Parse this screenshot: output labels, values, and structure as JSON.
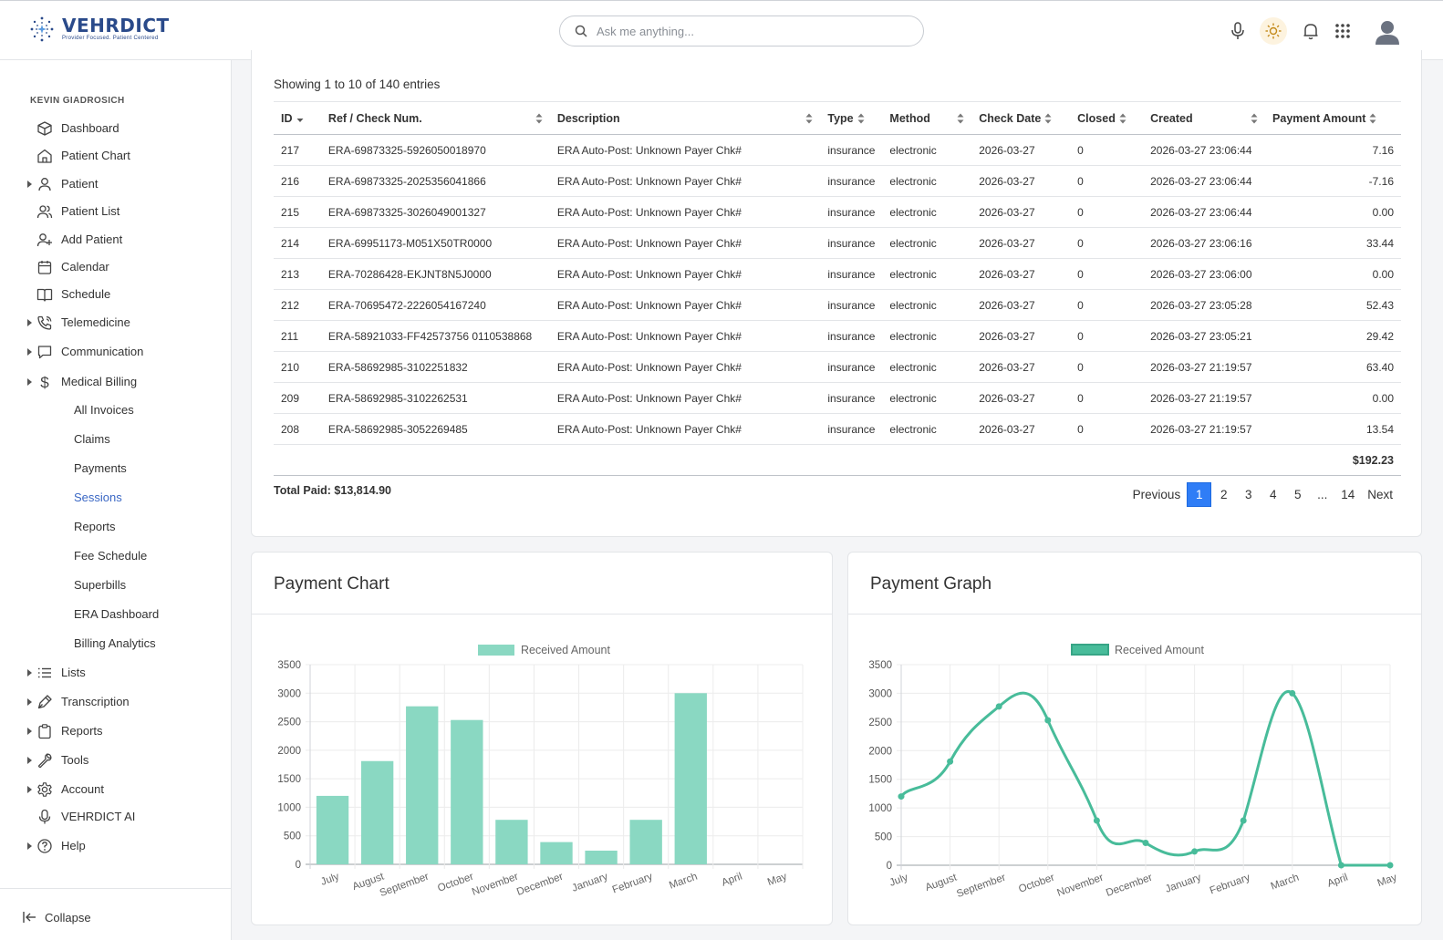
{
  "header": {
    "logo_name": "VEHRDICT",
    "logo_tagline": "Provider Focused. Patient Centered",
    "search_placeholder": "Ask me anything..."
  },
  "sidebar": {
    "user": "KEVIN GIADROSICH",
    "items": [
      {
        "label": "Dashboard",
        "icon": "cube-icon",
        "caret": false
      },
      {
        "label": "Patient Chart",
        "icon": "home-icon",
        "caret": false
      },
      {
        "label": "Patient",
        "icon": "user-icon",
        "caret": true
      },
      {
        "label": "Patient List",
        "icon": "users-icon",
        "caret": false
      },
      {
        "label": "Add Patient",
        "icon": "user-plus-icon",
        "caret": false
      },
      {
        "label": "Calendar",
        "icon": "calendar-icon",
        "caret": false
      },
      {
        "label": "Schedule",
        "icon": "book-icon",
        "caret": false
      },
      {
        "label": "Telemedicine",
        "icon": "phone-icon",
        "caret": true
      },
      {
        "label": "Communication",
        "icon": "chat-icon",
        "caret": true
      },
      {
        "label": "Medical Billing",
        "icon": "dollar-icon",
        "caret": true
      }
    ],
    "billing_sub": [
      "All Invoices",
      "Claims",
      "Payments",
      "Sessions",
      "Reports",
      "Fee Schedule",
      "Superbills",
      "ERA Dashboard",
      "Billing Analytics"
    ],
    "active_sub": "Sessions",
    "items2": [
      {
        "label": "Lists",
        "icon": "list-icon",
        "caret": true
      },
      {
        "label": "Transcription",
        "icon": "pen-icon",
        "caret": true
      },
      {
        "label": "Reports",
        "icon": "clipboard-icon",
        "caret": true
      },
      {
        "label": "Tools",
        "icon": "wrench-icon",
        "caret": true
      },
      {
        "label": "Account",
        "icon": "gear-icon",
        "caret": true
      },
      {
        "label": "VEHRDICT AI",
        "icon": "mic-icon",
        "caret": false
      },
      {
        "label": "Help",
        "icon": "help-icon",
        "caret": true
      }
    ],
    "collapse_label": "Collapse"
  },
  "table": {
    "showing": "Showing 1 to 10 of 140 entries",
    "columns": [
      "ID",
      "Ref / Check Num.",
      "Description",
      "Type",
      "Method",
      "Check Date",
      "Closed",
      "Created",
      "Payment Amount"
    ],
    "rows": [
      [
        "217",
        "ERA-69873325-5926050018970",
        "ERA Auto-Post: Unknown Payer Chk#",
        "insurance",
        "electronic",
        "2026-03-27",
        "0",
        "2026-03-27 23:06:44",
        "7.16"
      ],
      [
        "216",
        "ERA-69873325-2025356041866",
        "ERA Auto-Post: Unknown Payer Chk#",
        "insurance",
        "electronic",
        "2026-03-27",
        "0",
        "2026-03-27 23:06:44",
        "-7.16"
      ],
      [
        "215",
        "ERA-69873325-3026049001327",
        "ERA Auto-Post: Unknown Payer Chk#",
        "insurance",
        "electronic",
        "2026-03-27",
        "0",
        "2026-03-27 23:06:44",
        "0.00"
      ],
      [
        "214",
        "ERA-69951173-M051X50TR0000",
        "ERA Auto-Post: Unknown Payer Chk#",
        "insurance",
        "electronic",
        "2026-03-27",
        "0",
        "2026-03-27 23:06:16",
        "33.44"
      ],
      [
        "213",
        "ERA-70286428-EKJNT8N5J0000",
        "ERA Auto-Post: Unknown Payer Chk#",
        "insurance",
        "electronic",
        "2026-03-27",
        "0",
        "2026-03-27 23:06:00",
        "0.00"
      ],
      [
        "212",
        "ERA-70695472-2226054167240",
        "ERA Auto-Post: Unknown Payer Chk#",
        "insurance",
        "electronic",
        "2026-03-27",
        "0",
        "2026-03-27 23:05:28",
        "52.43"
      ],
      [
        "211",
        "ERA-58921033-FF42573756 0110538868",
        "ERA Auto-Post: Unknown Payer Chk#",
        "insurance",
        "electronic",
        "2026-03-27",
        "0",
        "2026-03-27 23:05:21",
        "29.42"
      ],
      [
        "210",
        "ERA-58692985-3102251832",
        "ERA Auto-Post: Unknown Payer Chk#",
        "insurance",
        "electronic",
        "2026-03-27",
        "0",
        "2026-03-27 21:19:57",
        "63.40"
      ],
      [
        "209",
        "ERA-58692985-3102262531",
        "ERA Auto-Post: Unknown Payer Chk#",
        "insurance",
        "electronic",
        "2026-03-27",
        "0",
        "2026-03-27 21:19:57",
        "0.00"
      ],
      [
        "208",
        "ERA-58692985-3052269485",
        "ERA Auto-Post: Unknown Payer Chk#",
        "insurance",
        "electronic",
        "2026-03-27",
        "0",
        "2026-03-27 21:19:57",
        "13.54"
      ]
    ],
    "page_total": "$192.23",
    "total_paid": "Total Paid: $13,814.90",
    "pager": {
      "previous": "Previous",
      "pages": [
        "1",
        "2",
        "3",
        "4",
        "5",
        "...",
        "14"
      ],
      "active": "1",
      "next": "Next"
    }
  },
  "chart_data": [
    {
      "type": "bar",
      "title": "Payment Chart",
      "categories": [
        "July",
        "August",
        "September",
        "October",
        "November",
        "December",
        "January",
        "February",
        "March",
        "April",
        "May"
      ],
      "series": [
        {
          "name": "Received Amount",
          "values": [
            1200,
            1810,
            2770,
            2530,
            780,
            390,
            240,
            780,
            3000,
            0,
            0
          ]
        }
      ],
      "ylim": [
        0,
        3500
      ],
      "yticks": [
        0,
        500,
        1000,
        1500,
        2000,
        2500,
        3000,
        3500
      ],
      "legend": "top",
      "grid": true,
      "color": "#8ad8c2"
    },
    {
      "type": "line",
      "title": "Payment Graph",
      "categories": [
        "July",
        "August",
        "September",
        "October",
        "November",
        "December",
        "January",
        "February",
        "March",
        "April",
        "May"
      ],
      "series": [
        {
          "name": "Received Amount",
          "values": [
            1200,
            1810,
            2770,
            2530,
            780,
            390,
            240,
            780,
            3000,
            0,
            0
          ]
        }
      ],
      "ylim": [
        0,
        3500
      ],
      "yticks": [
        0,
        500,
        1000,
        1500,
        2000,
        2500,
        3000,
        3500
      ],
      "legend": "top",
      "grid": true,
      "color": "#48bc9a"
    }
  ]
}
